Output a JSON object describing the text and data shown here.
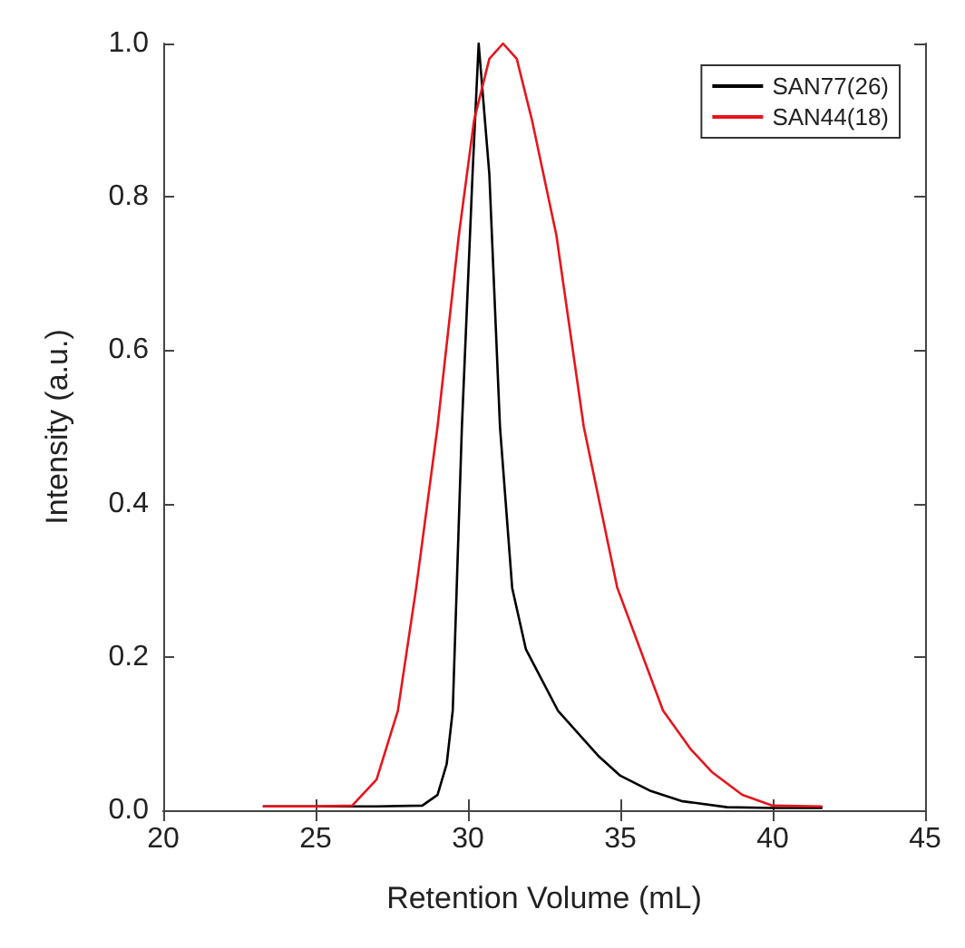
{
  "chart_data": {
    "type": "line",
    "xlabel": "Retention Volume (mL)",
    "ylabel": "Intensity (a.u.)",
    "xlim": [
      20,
      45
    ],
    "xticks": [
      20,
      25,
      30,
      35,
      40,
      45
    ],
    "ylim": [
      0,
      1.0
    ],
    "yticks": [
      {
        "value": 0,
        "label": "0.0"
      },
      {
        "value": 0.2,
        "label": "0.2"
      },
      {
        "value": 0.4,
        "label": "0.4"
      },
      {
        "value": 0.6,
        "label": "0.6"
      },
      {
        "value": 0.8,
        "label": "0.8"
      },
      {
        "value": 1,
        "label": "1.0"
      }
    ],
    "grid": false,
    "legend": "top right",
    "marker": "none",
    "line_style": "solid",
    "series": [
      {
        "name": "SAN77(26)",
        "color": "#000000",
        "x": [
          23.3,
          25,
          27,
          28.5,
          29.0,
          29.3,
          29.5,
          29.8,
          30.15,
          30.35,
          30.7,
          31.05,
          31.45,
          31.9,
          32.95,
          34.3,
          35,
          36,
          37,
          38.5,
          40,
          41.6
        ],
        "values": [
          0.005,
          0.005,
          0.005,
          0.006,
          0.02,
          0.06,
          0.13,
          0.5,
          0.83,
          1.0,
          0.83,
          0.5,
          0.29,
          0.21,
          0.13,
          0.07,
          0.045,
          0.025,
          0.012,
          0.004,
          0.003,
          0.003
        ]
      },
      {
        "name": "SAN44(18)",
        "color": "#e8141c",
        "x": [
          23.3,
          25,
          26.2,
          27,
          27.7,
          28.3,
          29.0,
          29.7,
          30.2,
          30.7,
          31.15,
          31.6,
          32.1,
          32.9,
          33.8,
          34.9,
          36.4,
          37.3,
          38,
          39,
          40,
          41.6
        ],
        "values": [
          0.005,
          0.005,
          0.006,
          0.04,
          0.13,
          0.29,
          0.5,
          0.75,
          0.9,
          0.98,
          1.0,
          0.98,
          0.9,
          0.75,
          0.5,
          0.29,
          0.13,
          0.08,
          0.05,
          0.02,
          0.006,
          0.005
        ]
      }
    ]
  }
}
